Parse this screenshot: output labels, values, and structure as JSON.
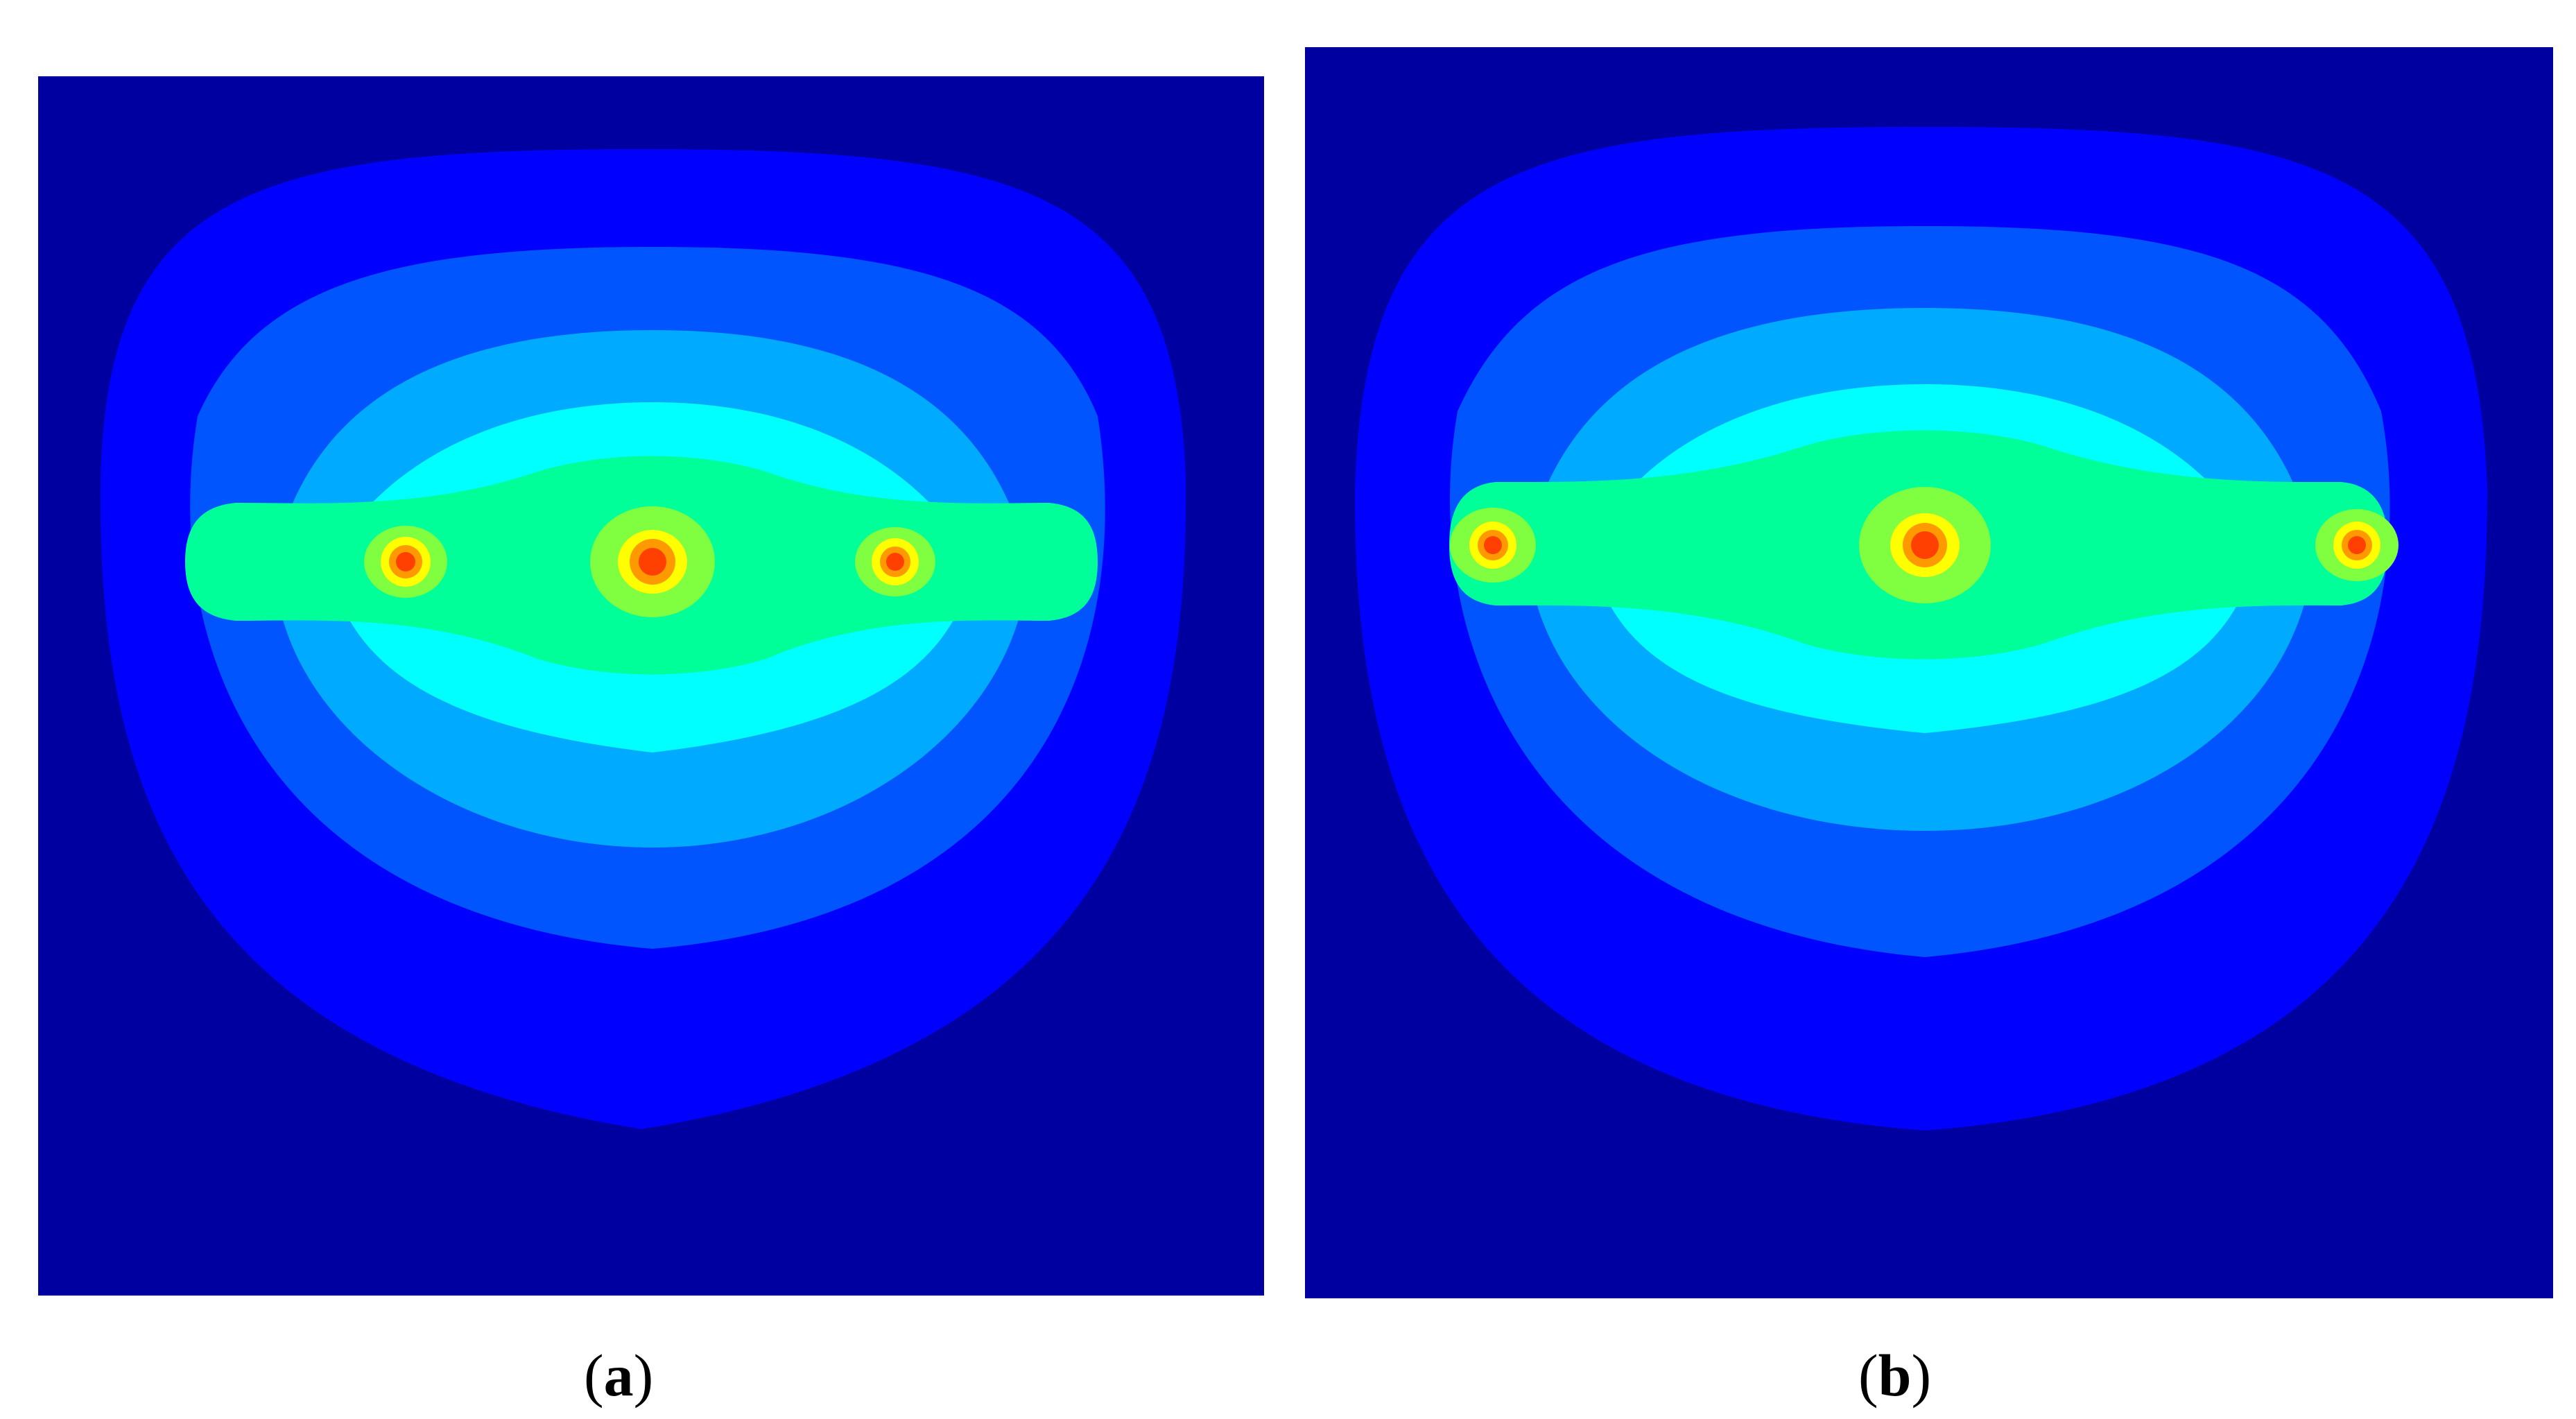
{
  "chart_data": [
    {
      "type": "heatmap",
      "panel_label": "a",
      "colormap": [
        "#0000a0",
        "#0000ff",
        "#0055ff",
        "#00aaff",
        "#00ffff",
        "#00ff99",
        "#80ff40",
        "#ffff00",
        "#ff9900",
        "#ff4000"
      ],
      "background_level": 0,
      "outer_contours": [
        {
          "level": 1,
          "color": "#0000ff"
        },
        {
          "level": 2,
          "color": "#0055ff"
        },
        {
          "level": 3,
          "color": "#00aaff"
        },
        {
          "level": 4,
          "color": "#00ffff"
        },
        {
          "level": 5,
          "color": "#00ff99"
        }
      ],
      "sources": [
        {
          "name": "left",
          "x": -1,
          "strength": "small"
        },
        {
          "name": "center",
          "x": 0,
          "strength": "large"
        },
        {
          "name": "right",
          "x": 1,
          "strength": "small"
        }
      ],
      "colorbar": false,
      "axes": false
    },
    {
      "type": "heatmap",
      "panel_label": "b",
      "colormap": [
        "#0000a0",
        "#0000ff",
        "#0055ff",
        "#00aaff",
        "#00ffff",
        "#00ff99",
        "#80ff40",
        "#ffff00",
        "#ff9900",
        "#ff4000"
      ],
      "background_level": 0,
      "outer_contours": [
        {
          "level": 1,
          "color": "#0000ff"
        },
        {
          "level": 2,
          "color": "#0055ff"
        },
        {
          "level": 3,
          "color": "#00aaff"
        },
        {
          "level": 4,
          "color": "#00ffff"
        },
        {
          "level": 5,
          "color": "#00ff99"
        }
      ],
      "sources": [
        {
          "name": "left",
          "x": -1,
          "strength": "small"
        },
        {
          "name": "center",
          "x": 0,
          "strength": "large"
        },
        {
          "name": "right",
          "x": 1,
          "strength": "small"
        }
      ],
      "colorbar": false,
      "axes": false
    }
  ],
  "captions": {
    "a": {
      "open": "(",
      "letter": "a",
      "close": ")"
    },
    "b": {
      "open": "(",
      "letter": "b",
      "close": ")"
    }
  }
}
